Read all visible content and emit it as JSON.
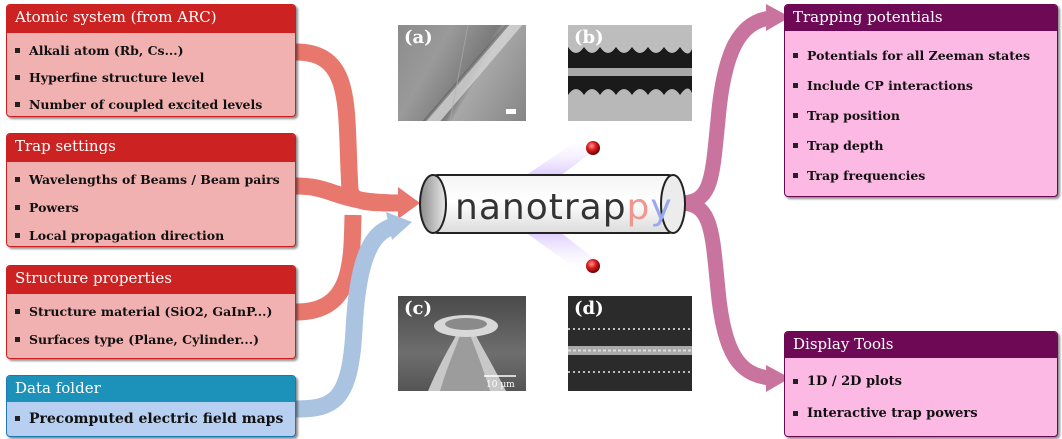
{
  "inputs": {
    "atomic": {
      "title": "Atomic system (from ARC)",
      "items": [
        "Alkali atom (Rb, Cs...)",
        "Hyperfine structure level",
        "Number of coupled excited levels"
      ]
    },
    "trap": {
      "title": "Trap settings",
      "items": [
        "Wavelengths of Beams / Beam pairs",
        "Powers",
        "Local propagation direction"
      ]
    },
    "structure": {
      "title": "Structure properties",
      "items": [
        "Structure material (SiO2, GaInP...)",
        "Surfaces type (Plane, Cylinder...)"
      ]
    },
    "data": {
      "title": "Data folder",
      "items": [
        "Precomputed electric field maps"
      ]
    }
  },
  "center": {
    "logo_main": "nanotrap",
    "logo_p": "p",
    "logo_y": "y"
  },
  "images": {
    "a": {
      "label": "(a)"
    },
    "b": {
      "label": "(b)"
    },
    "c": {
      "label": "(c)",
      "scale": "10 μm"
    },
    "d": {
      "label": "(d)"
    }
  },
  "outputs": {
    "trapping": {
      "title": "Trapping potentials",
      "items": [
        "Potentials for all Zeeman states",
        "Include CP interactions",
        "Trap position",
        "Trap depth",
        "Trap frequencies"
      ]
    },
    "display": {
      "title": "Display Tools",
      "items": [
        "1D / 2D plots",
        "Interactive trap powers"
      ]
    }
  },
  "colors": {
    "input_header": "#cc2222",
    "input_body": "#f2b1b1",
    "data_header": "#1c92bb",
    "data_body": "#b7cff0",
    "output_header": "#6e0a55",
    "output_body": "#fcb9e4",
    "arrow_red": "#e8776d",
    "arrow_blue": "#a9c3e1",
    "arrow_pink": "#c8749f",
    "logo_text": "#333333",
    "logo_p": "#f1968e",
    "logo_y": "#9aa9ee"
  }
}
